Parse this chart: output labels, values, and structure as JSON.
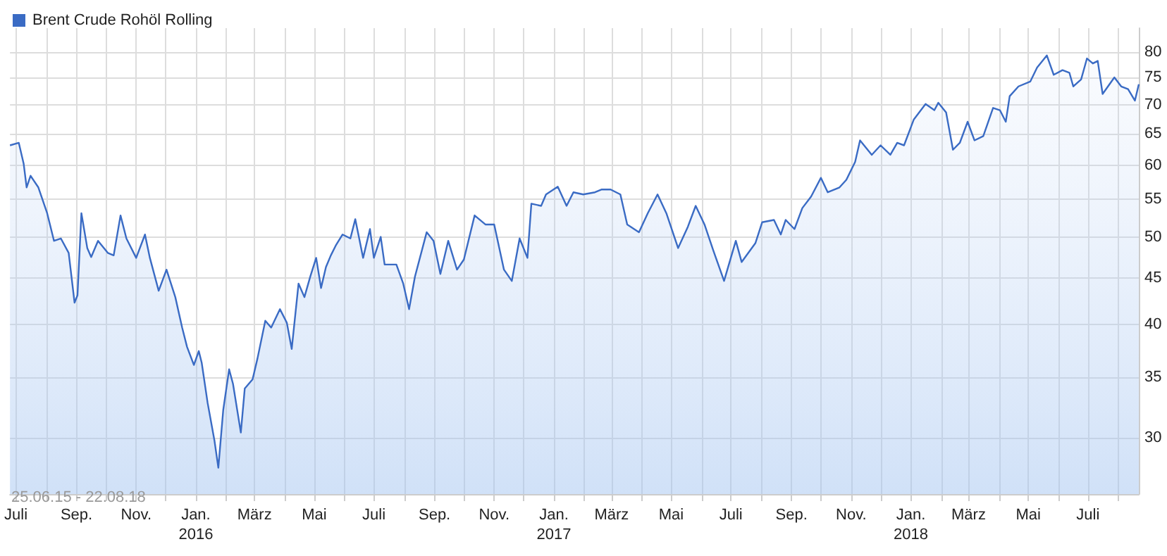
{
  "chart_data": {
    "type": "area",
    "legend": "top left",
    "grid": true,
    "marker": "none",
    "log": "y",
    "annotations": [
      "25.06.15 - 22.08.18"
    ],
    "xlim": [
      "2015-06-25",
      "2018-08-22"
    ],
    "ylim": [
      26,
      85
    ],
    "yticks": [
      30,
      35,
      40,
      45,
      50,
      55,
      60,
      65,
      70,
      75,
      80
    ],
    "xticks": [
      {
        "value": "2015-07-01",
        "label": "Juli"
      },
      {
        "value": "2015-08-01",
        "label": null
      },
      {
        "value": "2015-09-01",
        "label": "Sep."
      },
      {
        "value": "2015-10-01",
        "label": null
      },
      {
        "value": "2015-11-01",
        "label": "Nov."
      },
      {
        "value": "2015-12-01",
        "label": null
      },
      {
        "value": "2016-01-01",
        "label": "Jan.\n2016"
      },
      {
        "value": "2016-02-01",
        "label": null
      },
      {
        "value": "2016-03-01",
        "label": "März"
      },
      {
        "value": "2016-04-01",
        "label": null
      },
      {
        "value": "2016-05-01",
        "label": "Mai"
      },
      {
        "value": "2016-06-01",
        "label": null
      },
      {
        "value": "2016-07-01",
        "label": "Juli"
      },
      {
        "value": "2016-08-01",
        "label": null
      },
      {
        "value": "2016-09-01",
        "label": "Sep."
      },
      {
        "value": "2016-10-01",
        "label": null
      },
      {
        "value": "2016-11-01",
        "label": "Nov."
      },
      {
        "value": "2016-12-01",
        "label": null
      },
      {
        "value": "2017-01-01",
        "label": "Jan.\n2017"
      },
      {
        "value": "2017-02-01",
        "label": null
      },
      {
        "value": "2017-03-01",
        "label": "März"
      },
      {
        "value": "2017-04-01",
        "label": null
      },
      {
        "value": "2017-05-01",
        "label": "Mai"
      },
      {
        "value": "2017-06-01",
        "label": null
      },
      {
        "value": "2017-07-01",
        "label": "Juli"
      },
      {
        "value": "2017-08-01",
        "label": null
      },
      {
        "value": "2017-09-01",
        "label": "Sep."
      },
      {
        "value": "2017-10-01",
        "label": null
      },
      {
        "value": "2017-11-01",
        "label": "Nov."
      },
      {
        "value": "2017-12-01",
        "label": null
      },
      {
        "value": "2018-01-01",
        "label": "Jan.\n2018"
      },
      {
        "value": "2018-02-01",
        "label": null
      },
      {
        "value": "2018-03-01",
        "label": "März"
      },
      {
        "value": "2018-04-01",
        "label": null
      },
      {
        "value": "2018-05-01",
        "label": "Mai"
      },
      {
        "value": "2018-06-01",
        "label": null
      },
      {
        "value": "2018-07-01",
        "label": "Juli"
      },
      {
        "value": "2018-08-01",
        "label": null
      }
    ],
    "series": [
      {
        "name": "Brent Crude Rohöl Rolling",
        "color": "#3a6bc4",
        "x": [
          "2015-06-25",
          "2015-07-04",
          "2015-07-09",
          "2015-07-12",
          "2015-07-16",
          "2015-07-24",
          "2015-08-02",
          "2015-08-09",
          "2015-08-16",
          "2015-08-24",
          "2015-08-30",
          "2015-09-02",
          "2015-09-06",
          "2015-09-12",
          "2015-09-16",
          "2015-09-23",
          "2015-10-03",
          "2015-10-09",
          "2015-10-16",
          "2015-10-22",
          "2015-11-01",
          "2015-11-10",
          "2015-11-15",
          "2015-11-24",
          "2015-12-02",
          "2015-12-11",
          "2015-12-18",
          "2015-12-23",
          "2015-12-30",
          "2016-01-04",
          "2016-01-07",
          "2016-01-13",
          "2016-01-20",
          "2016-01-24",
          "2016-01-29",
          "2016-02-04",
          "2016-02-08",
          "2016-02-16",
          "2016-02-20",
          "2016-02-28",
          "2016-03-04",
          "2016-03-12",
          "2016-03-18",
          "2016-03-27",
          "2016-04-03",
          "2016-04-08",
          "2016-04-15",
          "2016-04-21",
          "2016-04-27",
          "2016-05-03",
          "2016-05-08",
          "2016-05-13",
          "2016-05-18",
          "2016-05-23",
          "2016-05-30",
          "2016-06-07",
          "2016-06-12",
          "2016-06-20",
          "2016-06-27",
          "2016-07-01",
          "2016-07-08",
          "2016-07-12",
          "2016-07-24",
          "2016-07-31",
          "2016-08-06",
          "2016-08-12",
          "2016-08-24",
          "2016-08-31",
          "2016-09-07",
          "2016-09-15",
          "2016-09-24",
          "2016-10-01",
          "2016-10-12",
          "2016-10-23",
          "2016-11-01",
          "2016-11-11",
          "2016-11-19",
          "2016-11-27",
          "2016-12-05",
          "2016-12-09",
          "2016-12-19",
          "2016-12-24",
          "2017-01-05",
          "2017-01-14",
          "2017-01-21",
          "2017-01-31",
          "2017-02-12",
          "2017-02-19",
          "2017-02-28",
          "2017-03-10",
          "2017-03-17",
          "2017-03-29",
          "2017-04-07",
          "2017-04-17",
          "2017-04-26",
          "2017-05-08",
          "2017-05-18",
          "2017-05-26",
          "2017-06-04",
          "2017-06-13",
          "2017-06-24",
          "2017-07-06",
          "2017-07-12",
          "2017-07-26",
          "2017-08-02",
          "2017-08-14",
          "2017-08-21",
          "2017-08-26",
          "2017-09-04",
          "2017-09-12",
          "2017-09-21",
          "2017-10-01",
          "2017-10-08",
          "2017-10-20",
          "2017-10-27",
          "2017-11-05",
          "2017-11-10",
          "2017-11-22",
          "2017-12-01",
          "2017-12-11",
          "2017-12-18",
          "2017-12-25",
          "2018-01-04",
          "2018-01-16",
          "2018-01-25",
          "2018-01-29",
          "2018-02-06",
          "2018-02-13",
          "2018-02-20",
          "2018-02-28",
          "2018-03-07",
          "2018-03-16",
          "2018-03-26",
          "2018-04-02",
          "2018-04-08",
          "2018-04-12",
          "2018-04-21",
          "2018-05-03",
          "2018-05-10",
          "2018-05-20",
          "2018-05-27",
          "2018-06-05",
          "2018-06-12",
          "2018-06-16",
          "2018-06-24",
          "2018-06-30",
          "2018-07-06",
          "2018-07-11",
          "2018-07-16",
          "2018-07-28",
          "2018-08-04",
          "2018-08-11",
          "2018-08-18",
          "2018-08-22"
        ],
        "values": [
          63.1,
          63.5,
          60.2,
          56.7,
          58.4,
          56.7,
          53.1,
          49.5,
          49.8,
          48.0,
          42.3,
          43.1,
          53.1,
          48.6,
          47.5,
          49.5,
          48.0,
          47.7,
          52.8,
          49.8,
          47.4,
          50.3,
          47.4,
          43.6,
          46.0,
          42.9,
          39.7,
          37.8,
          36.1,
          37.4,
          36.3,
          32.8,
          29.8,
          27.8,
          32.2,
          35.7,
          34.4,
          30.4,
          34.0,
          34.8,
          36.7,
          40.4,
          39.7,
          41.6,
          40.2,
          37.6,
          44.4,
          42.9,
          45.2,
          47.4,
          43.9,
          46.3,
          47.7,
          48.9,
          50.3,
          49.8,
          52.3,
          47.4,
          51.0,
          47.4,
          50.0,
          46.6,
          46.6,
          44.4,
          41.6,
          45.2,
          50.6,
          49.5,
          45.5,
          49.5,
          46.0,
          47.2,
          52.8,
          51.6,
          51.6,
          46.0,
          44.7,
          49.8,
          47.4,
          54.4,
          54.1,
          55.7,
          56.8,
          54.1,
          56.0,
          55.7,
          56.0,
          56.4,
          56.4,
          55.7,
          51.6,
          50.6,
          53.1,
          55.7,
          53.1,
          48.6,
          51.3,
          54.1,
          51.6,
          48.3,
          44.7,
          49.5,
          46.9,
          49.2,
          51.9,
          52.2,
          50.3,
          52.2,
          51.0,
          53.8,
          55.4,
          58.1,
          56.0,
          56.7,
          57.8,
          60.5,
          63.9,
          61.6,
          63.1,
          61.6,
          63.5,
          63.1,
          67.4,
          70.1,
          69.0,
          70.3,
          68.6,
          62.4,
          63.5,
          67.0,
          63.9,
          64.6,
          69.4,
          69.0,
          67.0,
          71.5,
          73.3,
          74.2,
          76.9,
          79.3,
          75.5,
          76.4,
          75.9,
          73.3,
          74.6,
          78.7,
          77.7,
          78.2,
          71.9,
          75.0,
          73.3,
          72.8,
          70.7,
          73.7
        ]
      }
    ]
  }
}
